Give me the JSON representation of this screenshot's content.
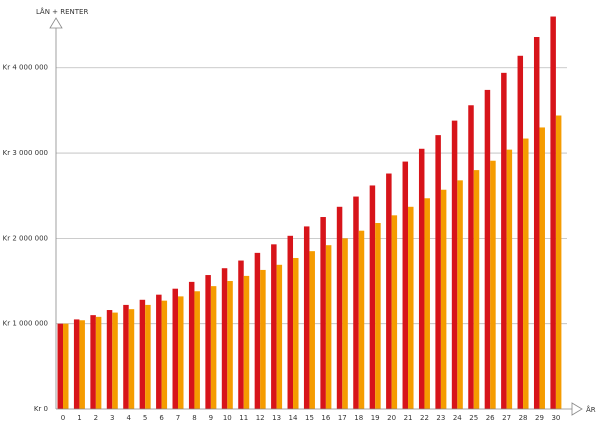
{
  "chart_data": {
    "type": "bar",
    "y_label": "LÅN + RENTER",
    "x_label": "ÅR",
    "categories": [
      "0",
      "1",
      "2",
      "3",
      "4",
      "5",
      "6",
      "7",
      "8",
      "9",
      "10",
      "11",
      "12",
      "13",
      "14",
      "15",
      "16",
      "17",
      "18",
      "19",
      "20",
      "21",
      "22",
      "23",
      "24",
      "25",
      "26",
      "27",
      "28",
      "29",
      "30"
    ],
    "series": [
      {
        "color": "#d7141a",
        "values": [
          1000000,
          1050000,
          1100000,
          1160000,
          1220000,
          1280000,
          1340000,
          1410000,
          1490000,
          1570000,
          1650000,
          1740000,
          1830000,
          1930000,
          2030000,
          2140000,
          2250000,
          2370000,
          2490000,
          2620000,
          2760000,
          2900000,
          3050000,
          3210000,
          3380000,
          3560000,
          3740000,
          3940000,
          4140000,
          4360000,
          4600000
        ]
      },
      {
        "color": "#f59c00",
        "values": [
          1000000,
          1040000,
          1080000,
          1130000,
          1170000,
          1220000,
          1270000,
          1320000,
          1380000,
          1440000,
          1500000,
          1560000,
          1630000,
          1690000,
          1770000,
          1850000,
          1920000,
          2000000,
          2090000,
          2180000,
          2270000,
          2370000,
          2470000,
          2570000,
          2680000,
          2800000,
          2910000,
          3040000,
          3170000,
          3300000,
          3440000
        ]
      }
    ],
    "ylim": [
      0,
      4700000
    ],
    "yticks": [
      {
        "value": 0,
        "label": "Kr 0"
      },
      {
        "value": 1000000,
        "label": "Kr 1 000 000"
      },
      {
        "value": 2000000,
        "label": "Kr 2 000 000"
      },
      {
        "value": 3000000,
        "label": "Kr 3 000 000"
      },
      {
        "value": 4000000,
        "label": "Kr 4 000 000"
      }
    ],
    "grid": true
  }
}
